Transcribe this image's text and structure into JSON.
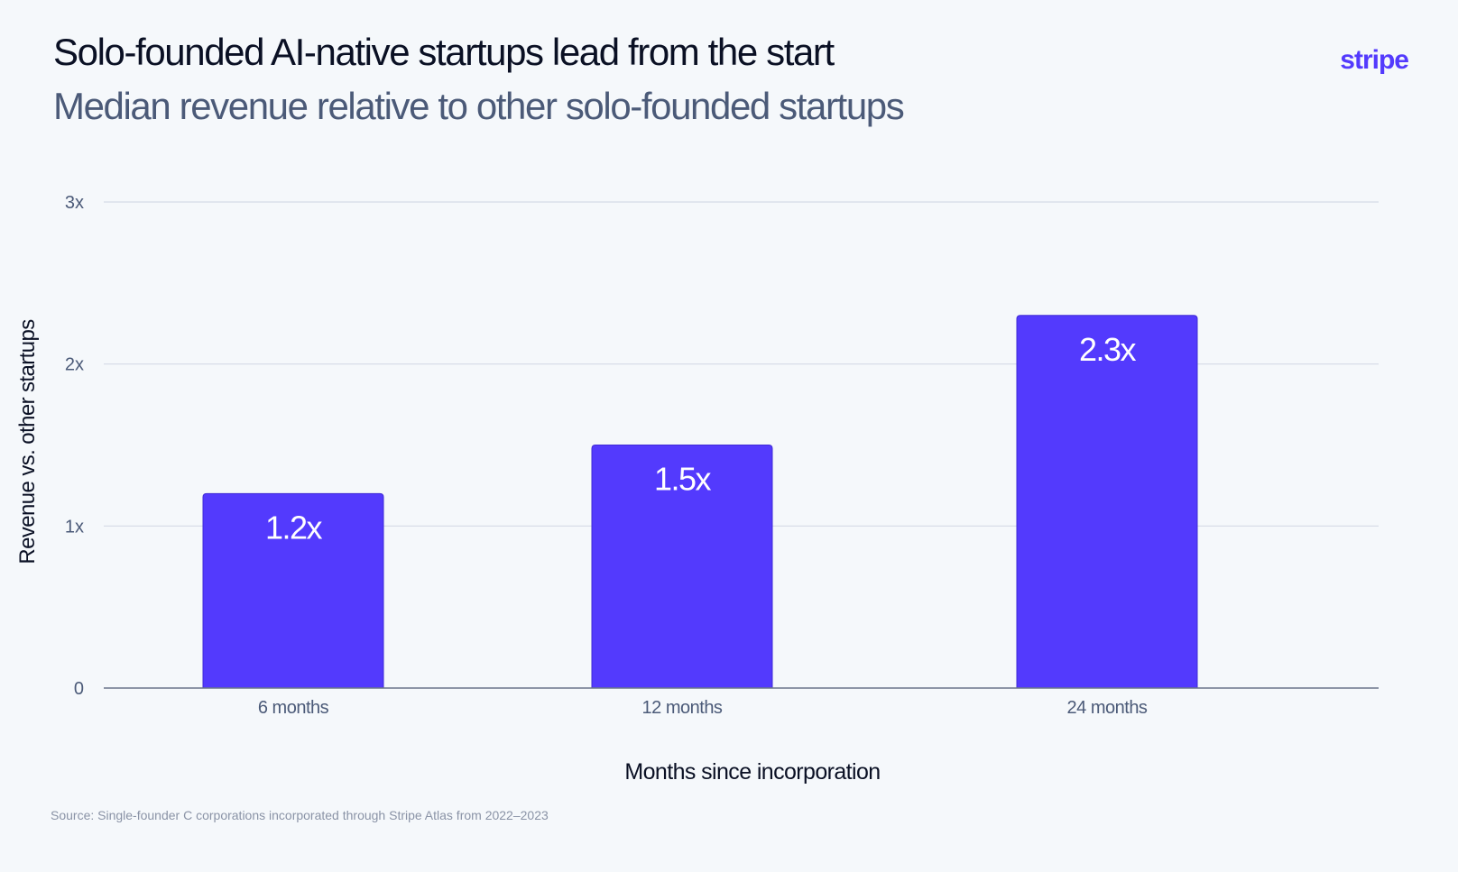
{
  "header": {
    "title": "Solo-founded AI-native startups lead from the start",
    "subtitle": "Median revenue relative to other solo-founded startups",
    "brand": "stripe"
  },
  "footer": {
    "source": "Source: Single-founder C corporations incorporated through Stripe Atlas from 2022–2023"
  },
  "colors": {
    "bar": "#533afd",
    "grid": "#d5dbe6",
    "axis": "#6b7489",
    "tick_text": "#4b5a78",
    "bar_label": "#ffffff",
    "brand": "#533afd"
  },
  "chart_data": {
    "type": "bar",
    "title": "Solo-founded AI-native startups lead from the start",
    "subtitle": "Median revenue relative to other solo-founded startups",
    "categories": [
      "6 months",
      "12 months",
      "24 months"
    ],
    "values": [
      1.2,
      1.5,
      2.3
    ],
    "data_labels": [
      "1.2x",
      "1.5x",
      "2.3x"
    ],
    "xlabel": "Months since incorporation",
    "ylabel": "Revenue vs. other startups",
    "ylim": [
      0,
      3
    ],
    "yticks": [
      0,
      1,
      2,
      3
    ],
    "ytick_labels": [
      "0",
      "1x",
      "2x",
      "3x"
    ],
    "grid": true,
    "legend": "none"
  }
}
